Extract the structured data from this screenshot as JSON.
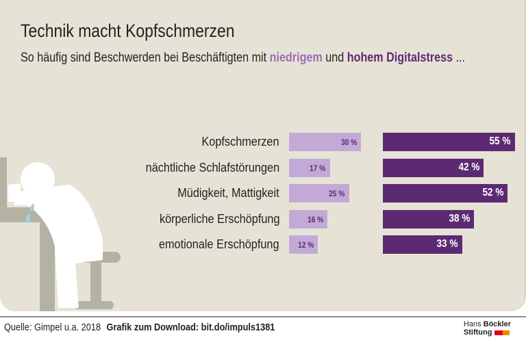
{
  "title": "Technik macht Kopfschmerzen",
  "subtitle": {
    "pre": "So häufig sind Beschwerden bei Beschäftigten mit ",
    "low": "niedrigem",
    "mid": " und ",
    "high": "hohem Digitalstress",
    "post": " ..."
  },
  "chart_data": {
    "type": "bar",
    "orientation": "horizontal",
    "categories": [
      "Kopfschmerzen",
      "nächtliche Schlafstörungen",
      "Müdigkeit, Mattigkeit",
      "körperliche Erschöpfung",
      "emotionale Erschöpfung"
    ],
    "series": [
      {
        "name": "niedrigem",
        "color": "#c3aad6",
        "values": [
          30,
          17,
          25,
          16,
          12
        ],
        "labels": [
          "30 %",
          "17 %",
          "25 %",
          "16 %",
          "12 %"
        ]
      },
      {
        "name": "hohem Digitalstress",
        "color": "#5c2a73",
        "values": [
          55,
          42,
          52,
          38,
          33
        ],
        "labels": [
          "55 %",
          "42 %",
          "52 %",
          "38 %",
          "33 %"
        ]
      }
    ]
  },
  "footer": {
    "source": "Quelle: Gimpel u.a. 2018",
    "download": "Grafik zum Download: bit.do/impuls1381"
  },
  "logo": {
    "line1a": "Hans ",
    "line1b": "Böckler",
    "line2": "Stiftung"
  }
}
